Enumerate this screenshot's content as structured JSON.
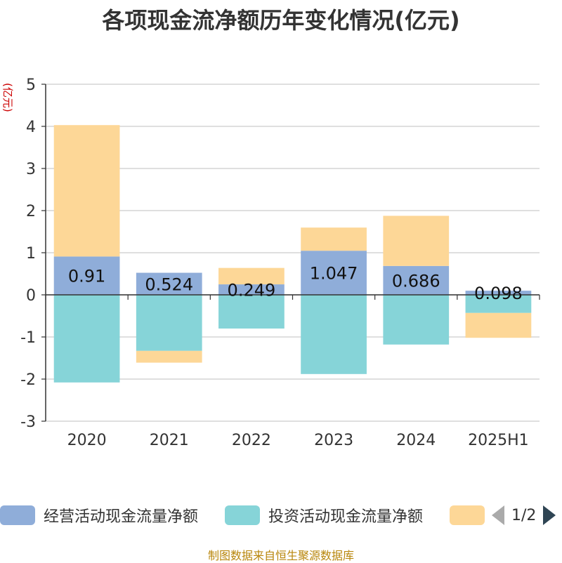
{
  "chart_data": {
    "type": "bar",
    "stacked": true,
    "title": "各项现金流净额历年变化情况(亿元)",
    "ylabel": "(亿元)",
    "categories": [
      "2020",
      "2021",
      "2022",
      "2023",
      "2024",
      "2025H1"
    ],
    "ylim": [
      -3,
      5
    ],
    "yticks": [
      "5",
      "4",
      "3",
      "2",
      "1",
      "0",
      "-1",
      "-2",
      "-3"
    ],
    "grid": true,
    "legend_position": "bottom",
    "series": [
      {
        "name": "经营活动现金流量净额",
        "color": "#8fadd9",
        "values": [
          0.91,
          0.524,
          0.249,
          1.047,
          0.686,
          0.098
        ],
        "labels": [
          "0.91",
          "0.524",
          "0.249",
          "1.047",
          "0.686",
          "0.098"
        ]
      },
      {
        "name": "投资活动现金流量净额",
        "color": "#86d4d8",
        "values": [
          -2.08,
          -1.33,
          -0.8,
          -1.88,
          -1.18,
          -0.43
        ]
      },
      {
        "name": "",
        "color": "#fdd797",
        "values": [
          3.12,
          -0.28,
          0.39,
          0.55,
          1.19,
          -0.59
        ]
      }
    ]
  },
  "legend": {
    "items": [
      "经营活动现金流量净额",
      "投资活动现金流量净额",
      ""
    ],
    "page": "1/2"
  },
  "source": "制图数据来自恒生聚源数据库"
}
